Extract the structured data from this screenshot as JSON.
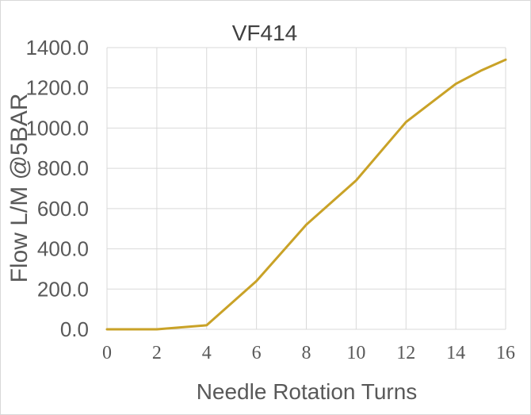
{
  "chart_data": {
    "type": "line",
    "title": "VF414",
    "xlabel": "Needle Rotation Turns",
    "ylabel": "Flow  L/M @5BAR",
    "xlim": [
      0,
      16
    ],
    "ylim": [
      0,
      1400
    ],
    "x_ticks": [
      0,
      2,
      4,
      6,
      8,
      10,
      12,
      14,
      16
    ],
    "y_ticks": [
      "0.0",
      "200.0",
      "400.0",
      "600.0",
      "800.0",
      "1000.0",
      "1200.0",
      "1400.0"
    ],
    "grid": true,
    "series": [
      {
        "color": "#c9a227",
        "x": [
          0,
          2,
          4,
          6,
          8,
          10,
          12,
          14,
          15,
          16
        ],
        "y": [
          0,
          0,
          20,
          240,
          520,
          740,
          1030,
          1220,
          1285,
          1340
        ]
      }
    ]
  }
}
